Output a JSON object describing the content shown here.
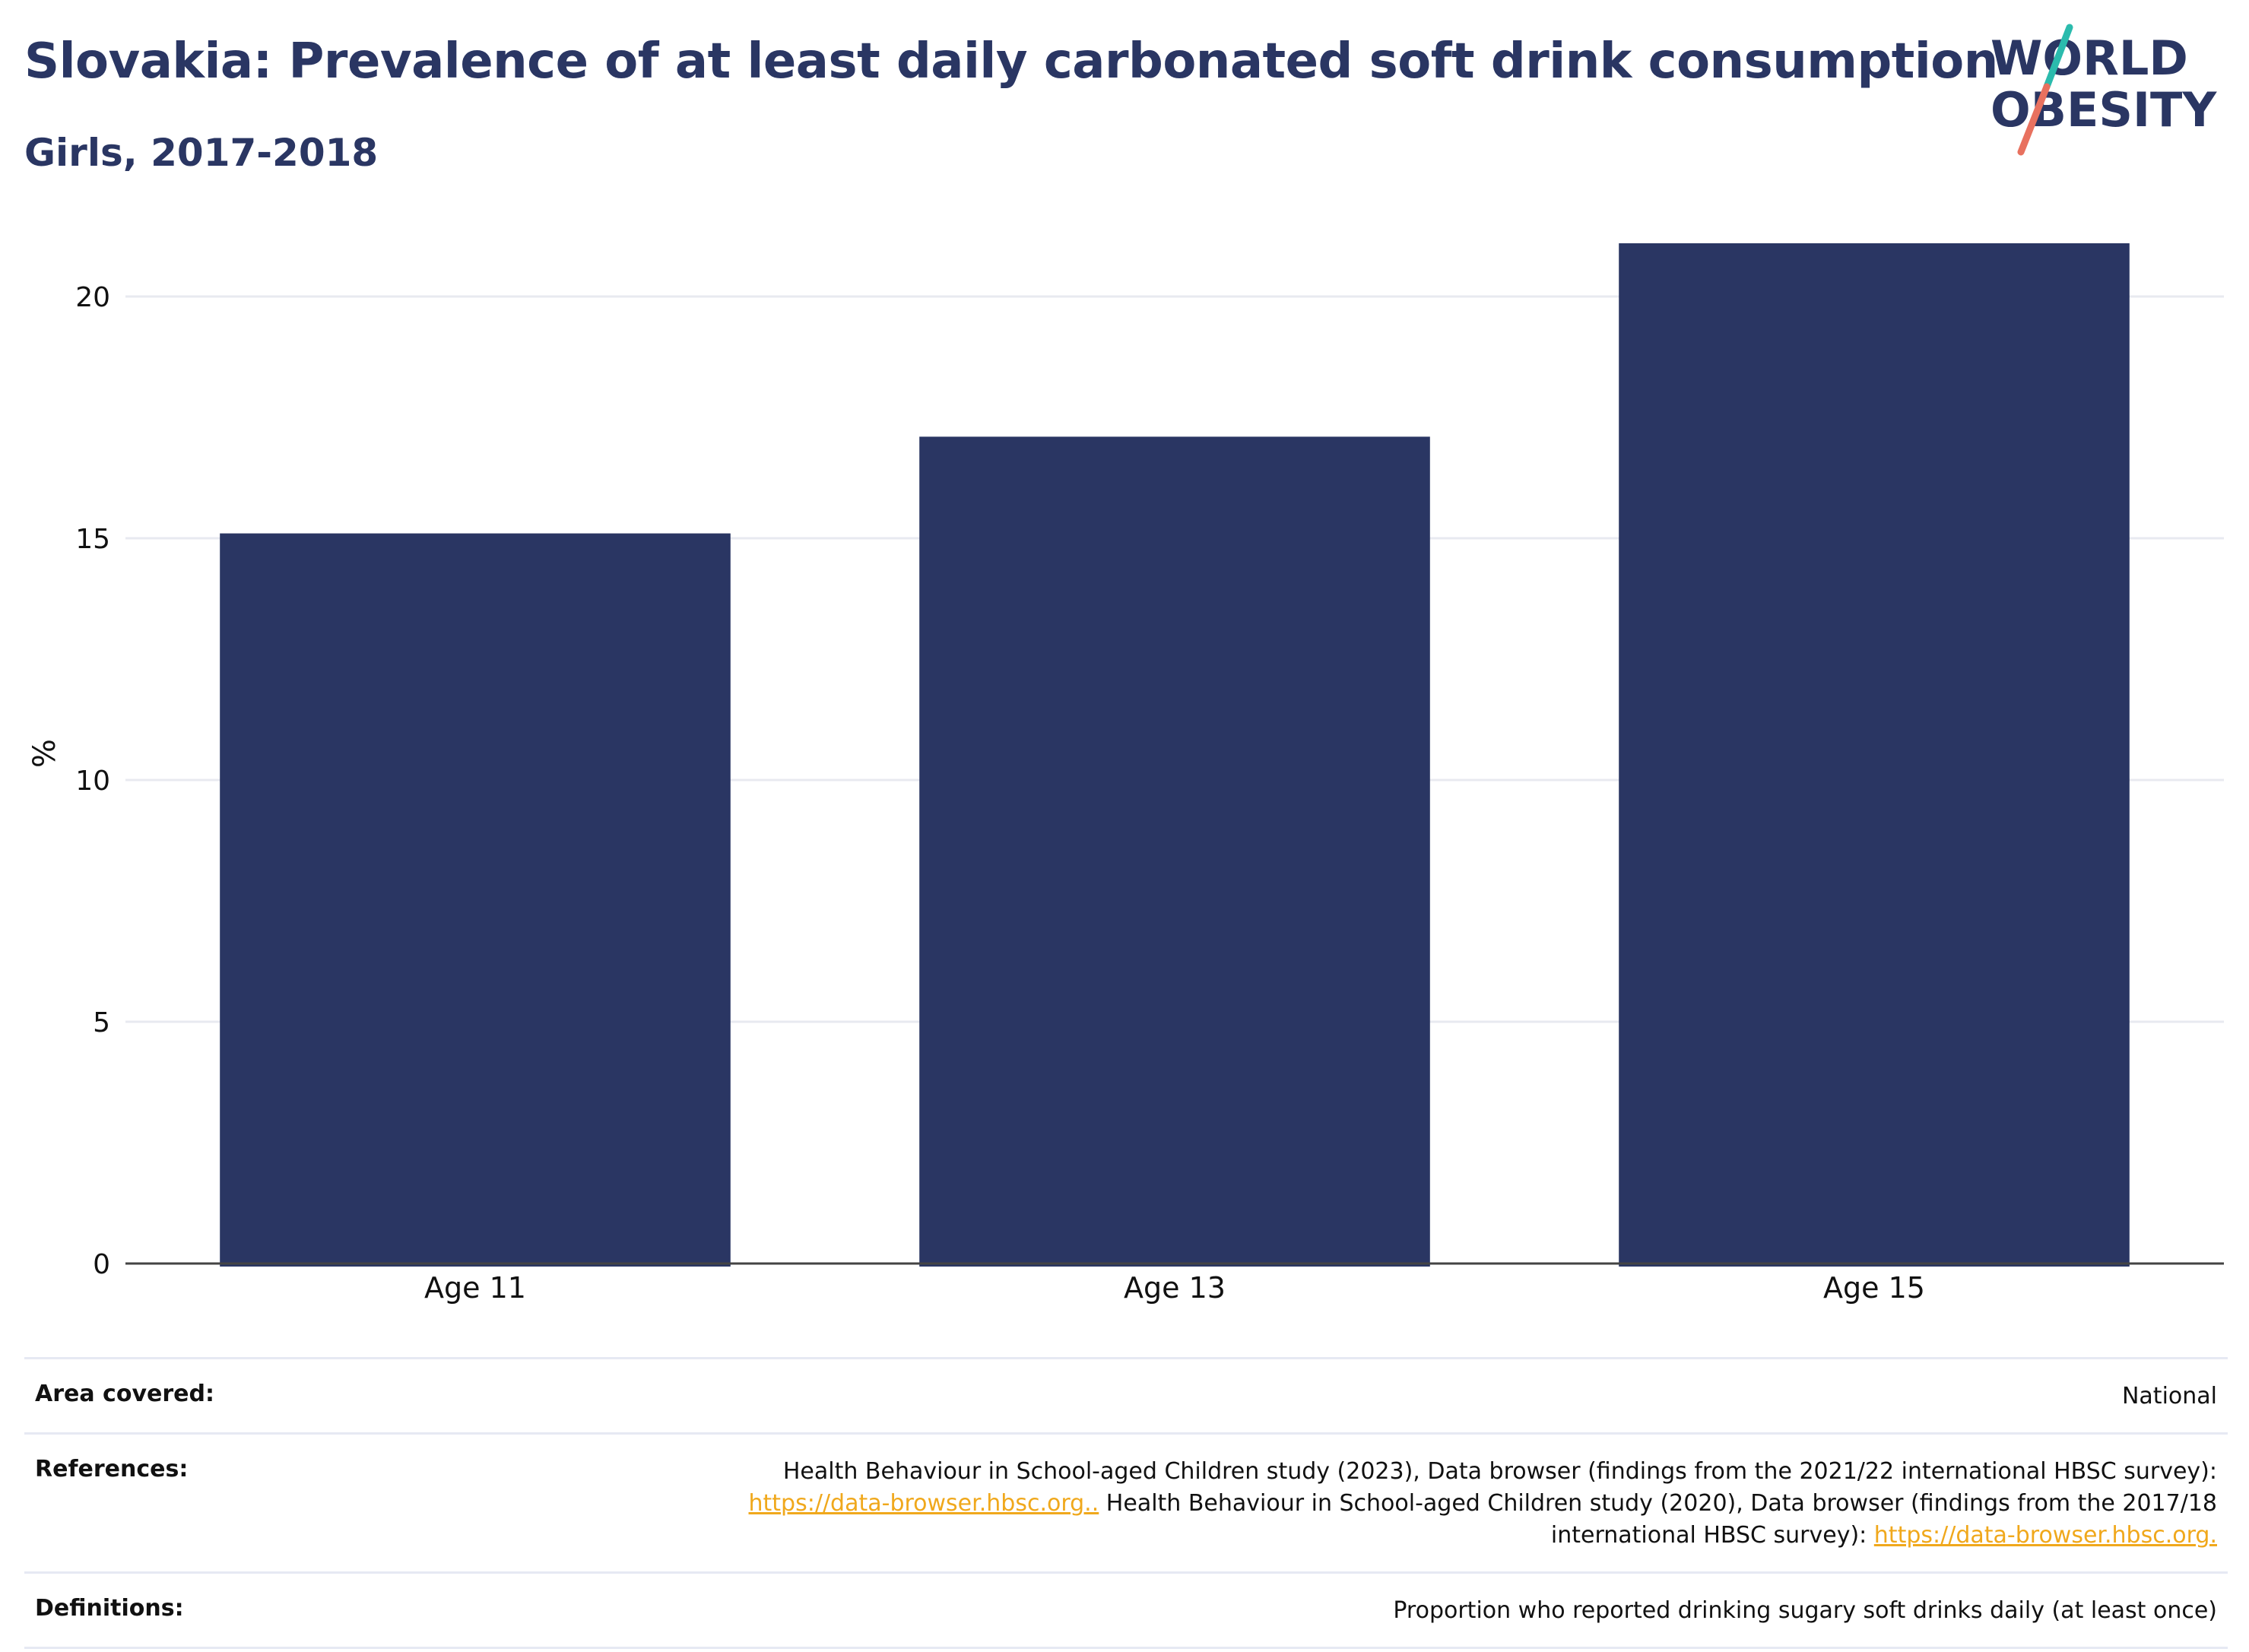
{
  "header": {
    "title": "Slovakia: Prevalence of at least daily carbonated soft drink consumption",
    "subtitle": "Girls, 2017-2018"
  },
  "logo": {
    "line1": "WORLD",
    "line2": "OBESITY",
    "text_color": "#2a3663",
    "accent_teal": "#2bbbad",
    "accent_coral": "#e8715f"
  },
  "chart_data": {
    "type": "bar",
    "categories": [
      "Age 11",
      "Age 13",
      "Age 15"
    ],
    "values": [
      15.1,
      17.1,
      21.1
    ],
    "title": "Slovakia: Prevalence of at least daily carbonated soft drink consumption",
    "subtitle": "Girls, 2017-2018",
    "xlabel": "",
    "ylabel": "%",
    "ylim": [
      0,
      21.1
    ],
    "yticks": [
      0,
      5,
      10,
      15,
      20
    ],
    "grid": true,
    "legend": "none",
    "bar_color": "#2a3663"
  },
  "info": {
    "area": {
      "label": "Area covered:",
      "value": "National"
    },
    "references": {
      "label": "References:",
      "text1": "Health Behaviour in School-aged Children study (2023), Data browser (findings from the 2021/22 international HBSC survey):",
      "link1": "https://data-browser.hbsc.org..",
      "text2": " Health Behaviour in School-aged Children study (2020), Data browser (findings from the 2017/18 international HBSC survey): ",
      "link2": "https://data-browser.hbsc.org."
    },
    "definitions": {
      "label": "Definitions:",
      "value": "Proportion who reported drinking sugary soft drinks daily (at least once)"
    }
  }
}
